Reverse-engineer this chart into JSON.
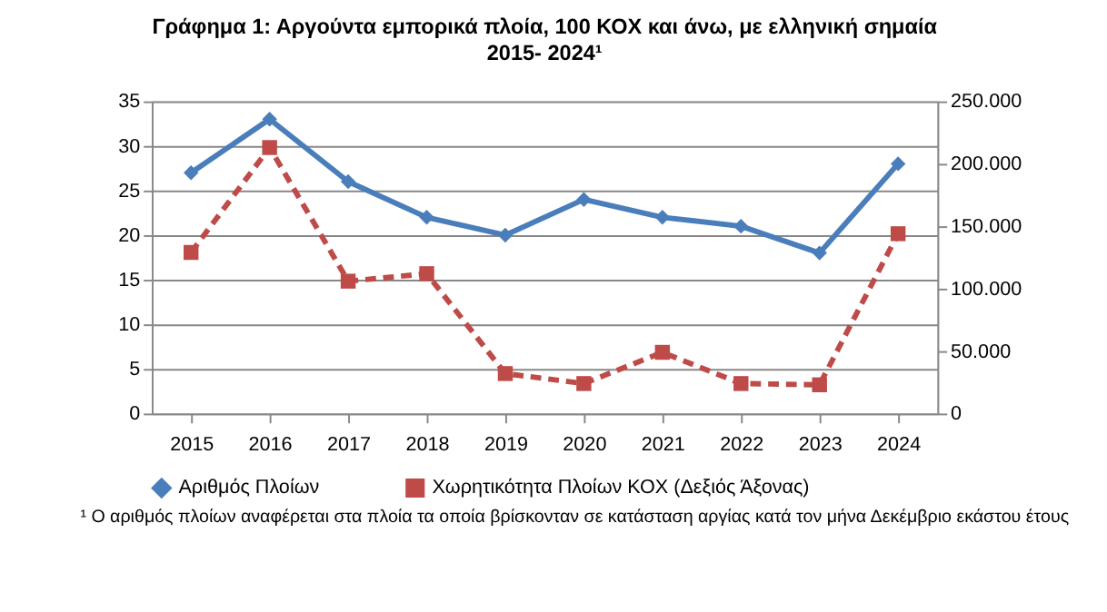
{
  "chart_data": {
    "type": "line",
    "title": "Γράφημα 1: Αργούντα  εμπορικά πλοία, 100 ΚΟΧ και άνω, με ελληνική σημαία",
    "subtitle": "2015- 2024¹",
    "categories": [
      "2015",
      "2016",
      "2017",
      "2018",
      "2019",
      "2020",
      "2021",
      "2022",
      "2023",
      "2024"
    ],
    "series": [
      {
        "name": "Αριθμός  Πλοίων",
        "color": "#4a7ebb",
        "marker": "diamond",
        "line_style": "solid",
        "values": [
          27,
          33,
          26,
          22,
          20,
          24,
          22,
          21,
          18,
          28
        ]
      },
      {
        "name": "Χωρητικότητα Πλοίων ΚΟΧ (Δεξιός Άξονας)",
        "color": "#be4b48",
        "marker": "square",
        "line_style": "dashed",
        "axis": "y2",
        "values": [
          129000,
          213000,
          106000,
          112000,
          32000,
          24000,
          49000,
          24000,
          23000,
          144000
        ]
      }
    ],
    "ylim": [
      0,
      35
    ],
    "yticks": [
      0,
      5,
      10,
      15,
      20,
      25,
      30,
      35
    ],
    "y2lim": [
      0,
      250000
    ],
    "y2ticks": [
      {
        "value": 0,
        "label": "0"
      },
      {
        "value": 50000,
        "label": "50.000"
      },
      {
        "value": 100000,
        "label": "100.000"
      },
      {
        "value": 150000,
        "label": "150.000"
      },
      {
        "value": 200000,
        "label": "200.000"
      },
      {
        "value": 250000,
        "label": "250.000"
      }
    ],
    "grid": "y",
    "legend": "bottom",
    "annotations": [
      "¹ Ο αριθμός πλοίων αναφέρεται στα πλοία τα οποία βρίσκονταν σε κατάσταση αργίας κατά τον μήνα Δεκέμβριο εκάστου έτους"
    ]
  }
}
